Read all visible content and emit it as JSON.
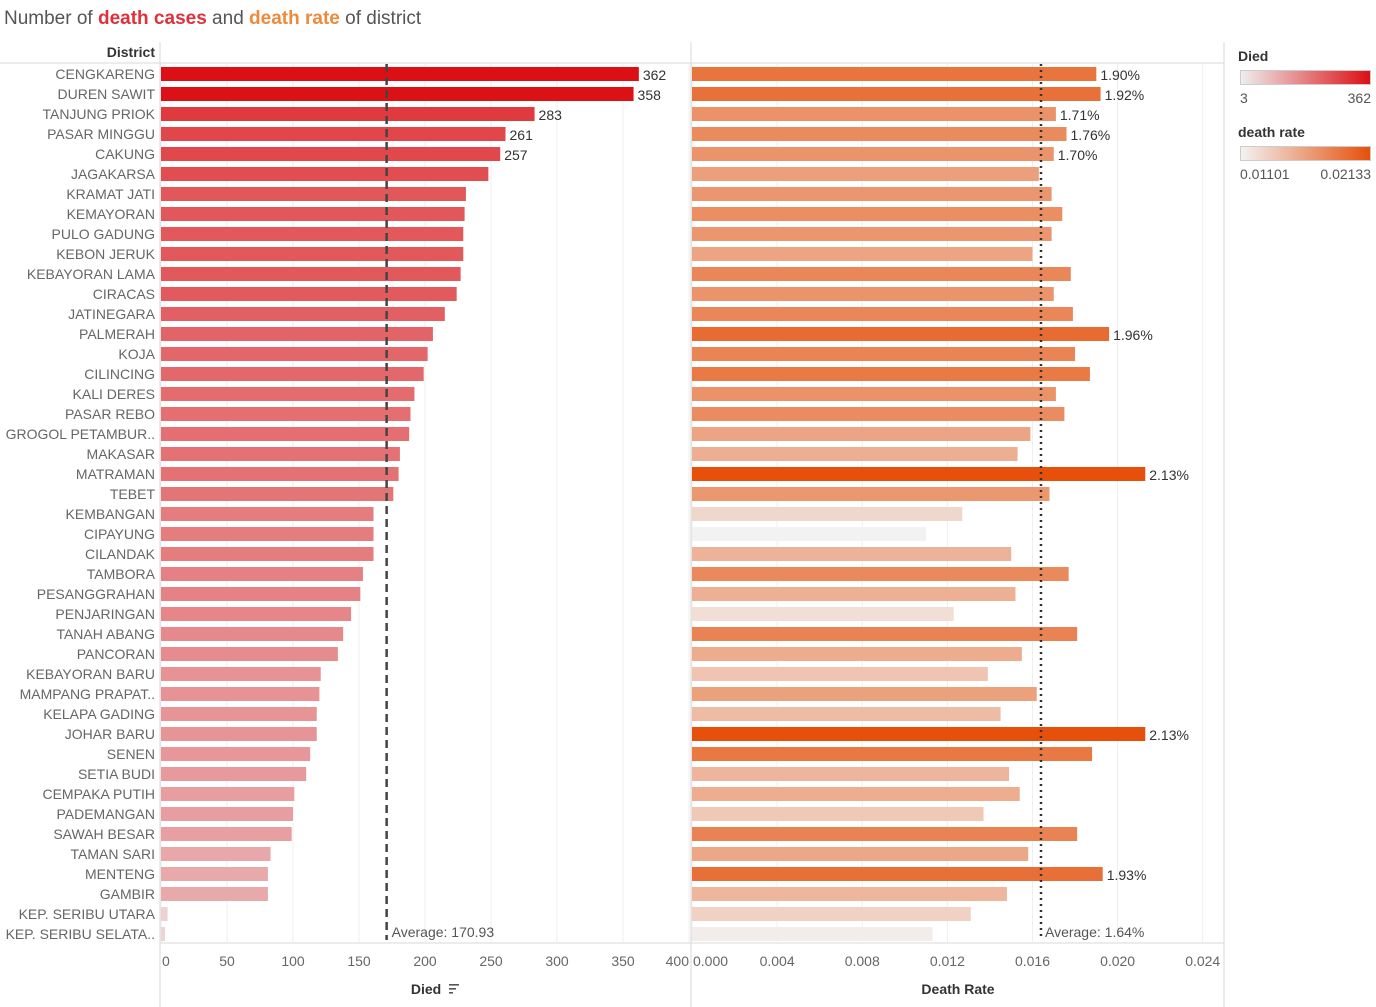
{
  "title": {
    "prefix": "Number of ",
    "part1": "death cases",
    "middle": " and ",
    "part2": "death rate",
    "suffix": " of district"
  },
  "legend": {
    "died": {
      "title": "Died",
      "min": "3",
      "max": "362",
      "color_low": "#eeeeee",
      "color_high": "#dc0f14"
    },
    "rate": {
      "title": "death rate",
      "min": "0.01101",
      "max": "0.02133",
      "color_low": "#f2f2f2",
      "color_high": "#e6500a"
    }
  },
  "chart_data": {
    "type": "bar",
    "row_header": "District",
    "categories": [
      "CENGKARENG",
      "DUREN SAWIT",
      "TANJUNG PRIOK",
      "PASAR MINGGU",
      "CAKUNG",
      "JAGAKARSA",
      "KRAMAT JATI",
      "KEMAYORAN",
      "PULO GADUNG",
      "KEBON JERUK",
      "KEBAYORAN LAMA",
      "CIRACAS",
      "JATINEGARA",
      "PALMERAH",
      "KOJA",
      "CILINCING",
      "KALI DERES",
      "PASAR REBO",
      "GROGOL PETAMBUR..",
      "MAKASAR",
      "MATRAMAN",
      "TEBET",
      "KEMBANGAN",
      "CIPAYUNG",
      "CILANDAK",
      "TAMBORA",
      "PESANGGRAHAN",
      "PENJARINGAN",
      "TANAH ABANG",
      "PANCORAN",
      "KEBAYORAN BARU",
      "MAMPANG PRAPAT..",
      "KELAPA GADING",
      "JOHAR BARU",
      "SENEN",
      "SETIA BUDI",
      "CEMPAKA PUTIH",
      "PADEMANGAN",
      "SAWAH BESAR",
      "TAMAN SARI",
      "MENTENG",
      "GAMBIR",
      "KEP. SERIBU UTARA",
      "KEP. SERIBU SELATA.."
    ],
    "series": [
      {
        "name": "Died",
        "xlabel": "Died",
        "xlim": [
          0,
          400
        ],
        "ticks": [
          0,
          50,
          100,
          150,
          200,
          250,
          300,
          350,
          400
        ],
        "tick_labels": [
          "0",
          "50",
          "100",
          "150",
          "200",
          "250",
          "300",
          "350",
          "400"
        ],
        "values": [
          362,
          358,
          283,
          261,
          257,
          248,
          231,
          230,
          229,
          229,
          227,
          224,
          215,
          206,
          202,
          199,
          192,
          189,
          188,
          181,
          180,
          176,
          161,
          161,
          161,
          153,
          151,
          144,
          138,
          134,
          121,
          120,
          118,
          118,
          113,
          110,
          101,
          100,
          99,
          83,
          81,
          81,
          5,
          3
        ],
        "shown_labels": {
          "0": "362",
          "1": "358",
          "2": "283",
          "3": "261",
          "4": "257"
        },
        "average": 170.93,
        "average_label": "Average: 170.93"
      },
      {
        "name": "Death Rate",
        "xlabel": "Death Rate",
        "xlim": [
          0,
          0.025
        ],
        "ticks": [
          0,
          0.004,
          0.008,
          0.012,
          0.016,
          0.02,
          0.024
        ],
        "tick_labels": [
          "0.000",
          "0.004",
          "0.008",
          "0.012",
          "0.016",
          "0.020",
          "0.024"
        ],
        "values": [
          0.019,
          0.0192,
          0.0171,
          0.0176,
          0.017,
          0.0163,
          0.0169,
          0.0174,
          0.0169,
          0.016,
          0.0178,
          0.017,
          0.0179,
          0.0196,
          0.018,
          0.0187,
          0.0171,
          0.0175,
          0.0159,
          0.0153,
          0.0213,
          0.0168,
          0.0127,
          0.011,
          0.015,
          0.0177,
          0.0152,
          0.0123,
          0.0181,
          0.0155,
          0.0139,
          0.0162,
          0.0145,
          0.0213,
          0.0188,
          0.0149,
          0.0154,
          0.0137,
          0.0181,
          0.0158,
          0.0193,
          0.0148,
          0.0131,
          0.0113
        ],
        "shown_labels": {
          "0": "1.90%",
          "1": "1.92%",
          "2": "1.71%",
          "3": "1.76%",
          "4": "1.70%",
          "13": "1.96%",
          "20": "2.13%",
          "33": "2.13%",
          "40": "1.93%"
        },
        "average": 0.0164,
        "average_label": "Average: 1.64%"
      }
    ],
    "sort_icon": "sort-descending-icon"
  }
}
